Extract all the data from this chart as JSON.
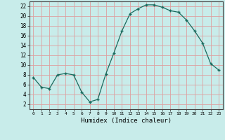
{
  "x": [
    0,
    1,
    2,
    3,
    4,
    5,
    6,
    7,
    8,
    9,
    10,
    11,
    12,
    13,
    14,
    15,
    16,
    17,
    18,
    19,
    20,
    21,
    22,
    23
  ],
  "y": [
    7.5,
    5.5,
    5.2,
    8.0,
    8.3,
    8.0,
    4.5,
    2.5,
    3.0,
    8.2,
    12.5,
    17.0,
    20.5,
    21.5,
    22.3,
    22.3,
    21.8,
    21.1,
    20.8,
    19.2,
    17.0,
    14.5,
    10.3,
    9.0
  ],
  "line_color": "#1a6b5e",
  "marker": "+",
  "marker_color": "#1a6b5e",
  "bg_color": "#c8ecea",
  "grid_color": "#dda0a0",
  "xlabel": "Humidex (Indice chaleur)",
  "xlim": [
    -0.5,
    23.5
  ],
  "ylim": [
    1,
    23
  ],
  "yticks": [
    2,
    4,
    6,
    8,
    10,
    12,
    14,
    16,
    18,
    20,
    22
  ],
  "xticks": [
    0,
    1,
    2,
    3,
    4,
    5,
    6,
    7,
    8,
    9,
    10,
    11,
    12,
    13,
    14,
    15,
    16,
    17,
    18,
    19,
    20,
    21,
    22,
    23
  ]
}
